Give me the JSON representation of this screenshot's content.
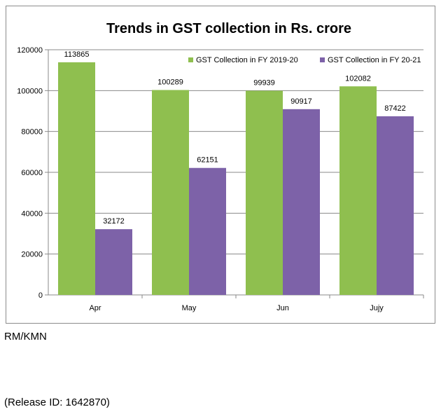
{
  "chart_data": {
    "type": "bar",
    "title": "Trends in GST collection in Rs. crore",
    "categories": [
      "Apr",
      "May",
      "Jun",
      "Jujy"
    ],
    "series": [
      {
        "name": "GST Collection in FY 2019-20",
        "values": [
          113865,
          100289,
          99939,
          102082
        ],
        "color": "#8fbf4f"
      },
      {
        "name": "GST Collection in FY 20-21",
        "values": [
          32172,
          62151,
          90917,
          87422
        ],
        "color": "#7d62a8"
      }
    ],
    "xlabel": "",
    "ylabel": "",
    "ylim": [
      0,
      120000
    ],
    "yticks": [
      0,
      20000,
      40000,
      60000,
      80000,
      100000,
      120000
    ],
    "grid": true,
    "legend": "top-right",
    "data_labels": true
  },
  "footer": {
    "initials": "RM/KMN",
    "release": "(Release ID: 1642870)"
  }
}
